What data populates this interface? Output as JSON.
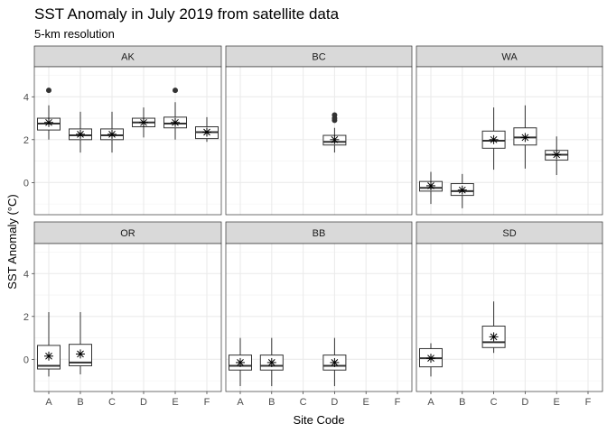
{
  "chart_data": {
    "type": "boxplot",
    "title": "SST Anomaly in July 2019 from satellite data",
    "subtitle": "5-km resolution",
    "xlabel": "Site Code",
    "ylabel": "SST Anomaly (°C)",
    "categories": [
      "A",
      "B",
      "C",
      "D",
      "E",
      "F"
    ],
    "y_ticks": [
      0,
      2,
      4
    ],
    "ylim": [
      -1.5,
      5.4
    ],
    "facet_layout": {
      "rows": 2,
      "cols": 3
    },
    "grid": true,
    "mean_marker": "asterisk",
    "panels": [
      {
        "name": "AK",
        "boxes": [
          {
            "category": "A",
            "min": 2.0,
            "q1": 2.45,
            "median": 2.75,
            "q3": 3.0,
            "max": 3.6,
            "mean": 2.8,
            "outliers": [
              4.3
            ]
          },
          {
            "category": "B",
            "min": 1.4,
            "q1": 2.0,
            "median": 2.2,
            "q3": 2.5,
            "max": 3.3,
            "mean": 2.25,
            "outliers": []
          },
          {
            "category": "C",
            "min": 1.4,
            "q1": 2.0,
            "median": 2.2,
            "q3": 2.5,
            "max": 3.3,
            "mean": 2.25,
            "outliers": []
          },
          {
            "category": "D",
            "min": 2.1,
            "q1": 2.6,
            "median": 2.8,
            "q3": 3.0,
            "max": 3.5,
            "mean": 2.8,
            "outliers": []
          },
          {
            "category": "E",
            "min": 2.0,
            "q1": 2.55,
            "median": 2.75,
            "q3": 3.05,
            "max": 3.75,
            "mean": 2.8,
            "outliers": [
              4.3
            ]
          },
          {
            "category": "F",
            "min": 1.9,
            "q1": 2.05,
            "median": 2.35,
            "q3": 2.6,
            "max": 3.05,
            "mean": 2.35,
            "outliers": []
          }
        ]
      },
      {
        "name": "BC",
        "boxes": [
          {
            "category": "D",
            "min": 1.4,
            "q1": 1.75,
            "median": 1.9,
            "q3": 2.2,
            "max": 2.55,
            "mean": 2.0,
            "outliers": [
              2.9,
              3.0,
              3.15
            ]
          }
        ]
      },
      {
        "name": "WA",
        "boxes": [
          {
            "category": "A",
            "min": -1.0,
            "q1": -0.4,
            "median": -0.25,
            "q3": 0.05,
            "max": 0.5,
            "mean": -0.15,
            "outliers": []
          },
          {
            "category": "B",
            "min": -1.2,
            "q1": -0.6,
            "median": -0.4,
            "q3": -0.05,
            "max": 0.4,
            "mean": -0.35,
            "outliers": []
          },
          {
            "category": "C",
            "min": 0.6,
            "q1": 1.6,
            "median": 1.95,
            "q3": 2.4,
            "max": 3.5,
            "mean": 2.0,
            "outliers": []
          },
          {
            "category": "D",
            "min": 0.65,
            "q1": 1.75,
            "median": 2.1,
            "q3": 2.55,
            "max": 3.6,
            "mean": 2.1,
            "outliers": []
          },
          {
            "category": "E",
            "min": 0.35,
            "q1": 1.05,
            "median": 1.3,
            "q3": 1.5,
            "max": 2.15,
            "mean": 1.3,
            "outliers": []
          }
        ]
      },
      {
        "name": "OR",
        "boxes": [
          {
            "category": "A",
            "min": -0.8,
            "q1": -0.45,
            "median": -0.3,
            "q3": 0.65,
            "max": 2.2,
            "mean": 0.15,
            "outliers": []
          },
          {
            "category": "B",
            "min": -0.7,
            "q1": -0.3,
            "median": -0.15,
            "q3": 0.7,
            "max": 2.2,
            "mean": 0.25,
            "outliers": []
          }
        ]
      },
      {
        "name": "BB",
        "boxes": [
          {
            "category": "A",
            "min": -1.25,
            "q1": -0.5,
            "median": -0.3,
            "q3": 0.2,
            "max": 1.0,
            "mean": -0.15,
            "outliers": []
          },
          {
            "category": "B",
            "min": -1.25,
            "q1": -0.5,
            "median": -0.3,
            "q3": 0.2,
            "max": 1.0,
            "mean": -0.15,
            "outliers": []
          },
          {
            "category": "D",
            "min": -1.25,
            "q1": -0.5,
            "median": -0.3,
            "q3": 0.2,
            "max": 1.0,
            "mean": -0.15,
            "outliers": []
          }
        ]
      },
      {
        "name": "SD",
        "boxes": [
          {
            "category": "A",
            "min": -0.8,
            "q1": -0.35,
            "median": 0.05,
            "q3": 0.5,
            "max": 0.75,
            "mean": 0.05,
            "outliers": []
          },
          {
            "category": "C",
            "min": 0.3,
            "q1": 0.55,
            "median": 0.8,
            "q3": 1.55,
            "max": 2.7,
            "mean": 1.05,
            "outliers": []
          }
        ]
      }
    ]
  }
}
